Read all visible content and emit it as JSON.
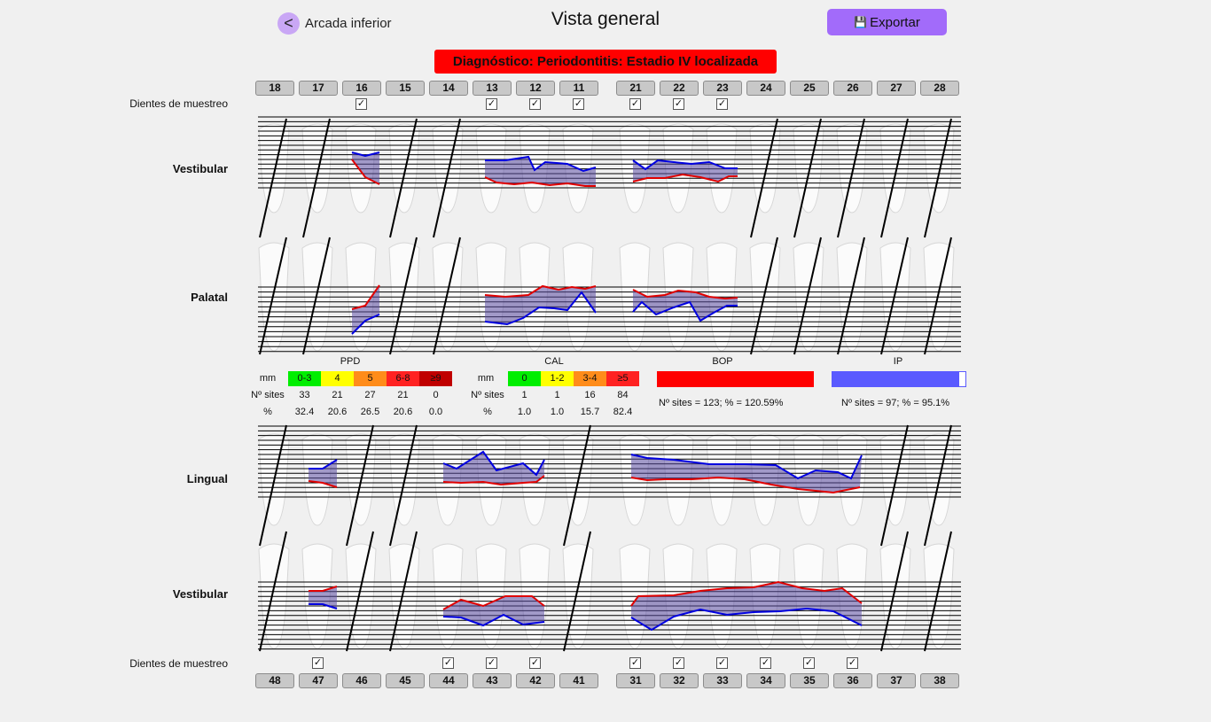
{
  "header": {
    "back_label": "Arcada inferior",
    "back_icon": "<",
    "title": "Vista general",
    "export_label": "Exportar",
    "export_icon": "floppy-disk-icon"
  },
  "diagnosis": "Diagnóstico: Periodontitis: Estadio IV  localizada",
  "upper": {
    "teeth": [
      "18",
      "17",
      "16",
      "15",
      "14",
      "13",
      "12",
      "11",
      "21",
      "22",
      "23",
      "24",
      "25",
      "26",
      "27",
      "28"
    ],
    "sample_label": "Dientes de muestreo",
    "sample_checked": [
      false,
      false,
      true,
      false,
      false,
      true,
      true,
      true,
      true,
      true,
      true,
      false,
      false,
      false,
      false,
      false
    ],
    "rows": [
      "Vestibular",
      "Palatal"
    ]
  },
  "lower": {
    "teeth": [
      "48",
      "47",
      "46",
      "45",
      "44",
      "43",
      "42",
      "41",
      "31",
      "32",
      "33",
      "34",
      "35",
      "36",
      "37",
      "38"
    ],
    "sample_label": "Dientes de muestreo",
    "sample_checked": [
      false,
      true,
      false,
      false,
      true,
      true,
      true,
      false,
      true,
      true,
      true,
      true,
      true,
      true,
      false,
      false
    ],
    "rows": [
      "Lingual",
      "Vestibular"
    ]
  },
  "legend": {
    "ppd": {
      "title": "PPD",
      "unit": "mm",
      "sites_label": "Nº sites",
      "pct_label": "%",
      "bins": [
        {
          "label": "0-3",
          "color": "#00ee00",
          "sites": "33",
          "pct": "32.4"
        },
        {
          "label": "4",
          "color": "#ffff00",
          "sites": "21",
          "pct": "20.6"
        },
        {
          "label": "5",
          "color": "#ff8c1a",
          "sites": "27",
          "pct": "26.5"
        },
        {
          "label": "6-8",
          "color": "#ff2222",
          "sites": "21",
          "pct": "20.6"
        },
        {
          "label": "≥9",
          "color": "#c00000",
          "sites": "0",
          "pct": "0.0"
        }
      ]
    },
    "cal": {
      "title": "CAL",
      "unit": "mm",
      "sites_label": "Nº sites",
      "pct_label": "%",
      "bins": [
        {
          "label": "0",
          "color": "#00ee00",
          "sites": "1",
          "pct": "1.0"
        },
        {
          "label": "1-2",
          "color": "#ffff00",
          "sites": "1",
          "pct": "1.0"
        },
        {
          "label": "3-4",
          "color": "#ff8c1a",
          "sites": "16",
          "pct": "15.7"
        },
        {
          "label": "≥5",
          "color": "#ff2222",
          "sites": "84",
          "pct": "82.4"
        }
      ]
    },
    "bop": {
      "title": "BOP",
      "color": "#ff0000",
      "summary": "Nº sites = 123; % = 120.59%",
      "fraction": 1.0
    },
    "ip": {
      "title": "IP",
      "color": "#5a5aff",
      "summary": "Nº sites = 97; % = 95.1%",
      "fraction": 0.951
    }
  },
  "colors": {
    "accent": "#a26bfa",
    "diagnosis": "#ff0000",
    "gingival_line": "#e00000",
    "attachment_line": "#0000e0",
    "area_fill": "#5a4aa0"
  }
}
